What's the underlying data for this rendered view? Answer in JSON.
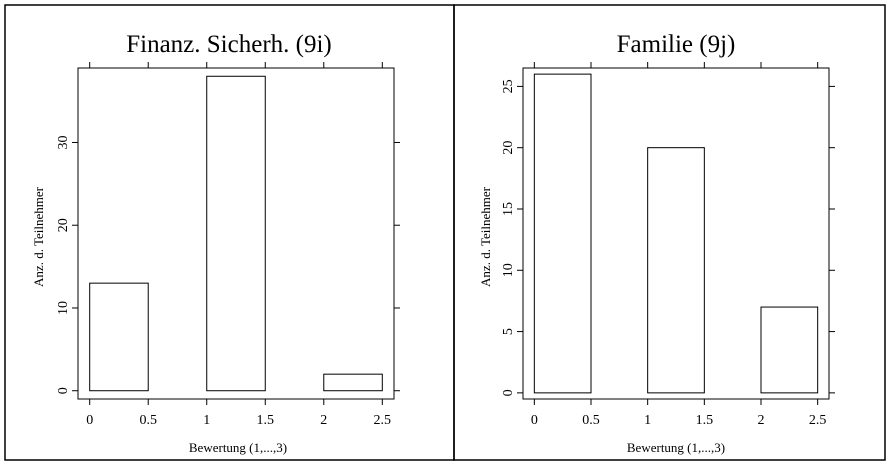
{
  "chart_data": [
    {
      "type": "bar",
      "title": "Finanz. Sicherh. (9i)",
      "xlabel": "Bewertung (1,...,3)",
      "ylabel": "Anz. d. Teilnehmer",
      "bars": [
        {
          "x0": 0.0,
          "x1": 0.5,
          "value": 13
        },
        {
          "x0": 1.0,
          "x1": 1.5,
          "value": 38
        },
        {
          "x0": 2.0,
          "x1": 2.5,
          "value": 2
        }
      ],
      "xlim": [
        -0.1,
        2.6
      ],
      "ylim": [
        -1,
        39
      ],
      "xticks": [
        0,
        0.5,
        1,
        1.5,
        2,
        2.5
      ],
      "xtick_labels": [
        "0",
        "0.5",
        "1",
        "1.5",
        "2",
        "2.5"
      ],
      "yticks": [
        0,
        10,
        20,
        30
      ],
      "ytick_labels": [
        "0",
        "10",
        "20",
        "30"
      ],
      "grid": false
    },
    {
      "type": "bar",
      "title": "Familie (9j)",
      "xlabel": "Bewertung (1,...,3)",
      "ylabel": "Anz. d. Teilnehmer",
      "bars": [
        {
          "x0": 0.0,
          "x1": 0.5,
          "value": 26
        },
        {
          "x0": 1.0,
          "x1": 1.5,
          "value": 20
        },
        {
          "x0": 2.0,
          "x1": 2.5,
          "value": 7
        }
      ],
      "xlim": [
        -0.1,
        2.6
      ],
      "ylim": [
        -0.5,
        26.5
      ],
      "xticks": [
        0,
        0.5,
        1,
        1.5,
        2,
        2.5
      ],
      "xtick_labels": [
        "0",
        "0.5",
        "1",
        "1.5",
        "2",
        "2.5"
      ],
      "yticks": [
        0,
        5,
        10,
        15,
        20,
        25
      ],
      "ytick_labels": [
        "0",
        "5",
        "10",
        "15",
        "20",
        "25"
      ],
      "grid": false
    }
  ]
}
